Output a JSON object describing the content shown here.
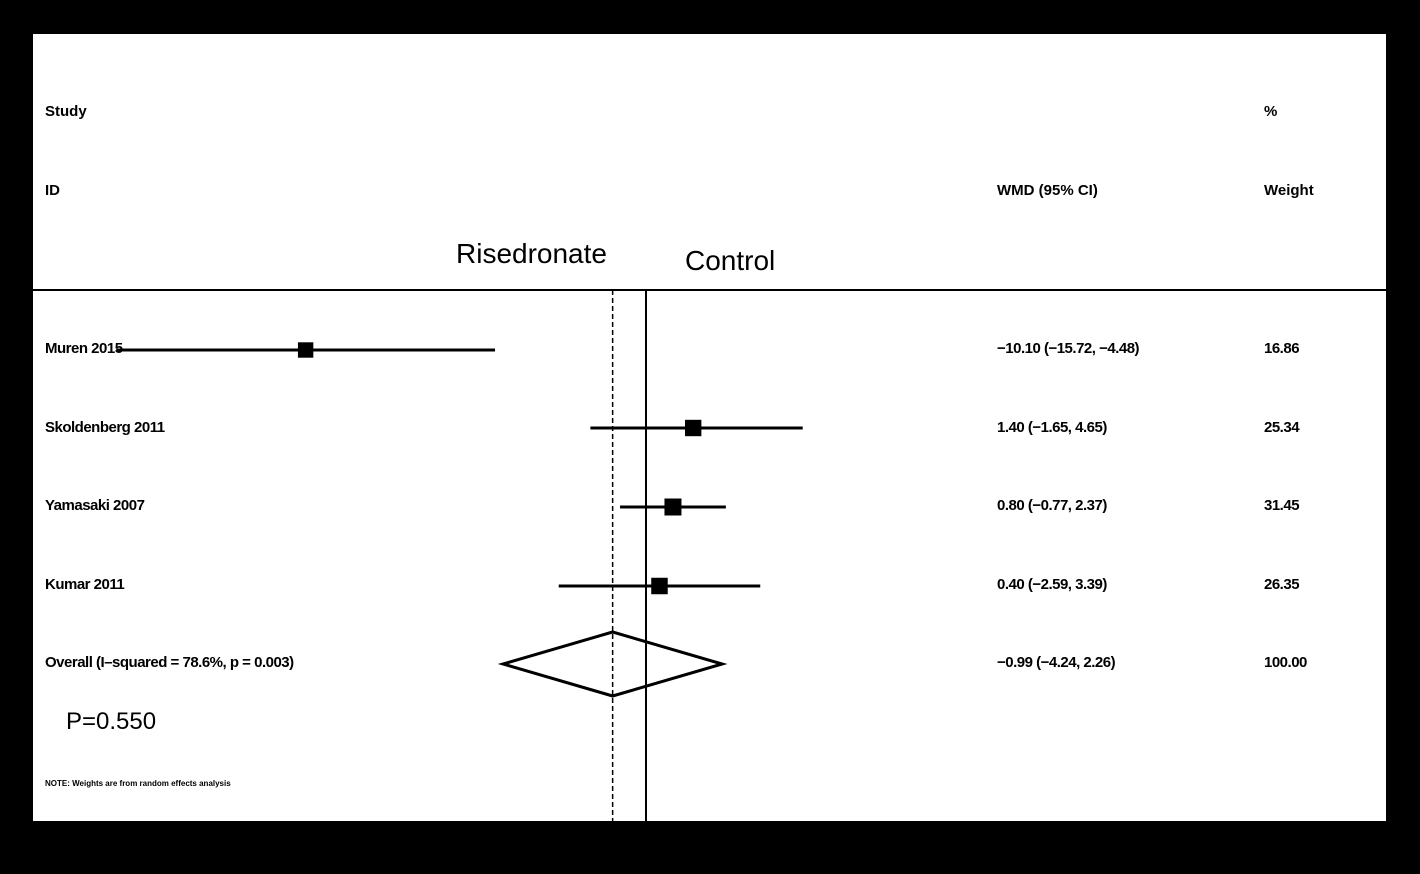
{
  "header": {
    "study_line1": "Study",
    "study_line2": "ID",
    "effect_header": "WMD (95% CI)",
    "weight_line1": "%",
    "weight_line2": "Weight"
  },
  "groups": {
    "left": "Risedronate",
    "right": "Control"
  },
  "annotations": {
    "p_value": "P=0.550",
    "note": "NOTE: Weights are from random effects analysis"
  },
  "chart_data": {
    "type": "forest",
    "xlim": [
      -20.4,
      20.4
    ],
    "ticks": [
      -10,
      0,
      10
    ],
    "tick_labels": [
      "-10",
      "0",
      "10"
    ],
    "null_line": 0,
    "studies": [
      {
        "name": "Muren 2015",
        "estimate": -10.1,
        "lower": -15.72,
        "upper": -4.48,
        "ci_text": "−10.10 (−15.72, −4.48)",
        "weight": 16.86,
        "weight_text": "16.86"
      },
      {
        "name": "Skoldenberg 2011",
        "estimate": 1.4,
        "lower": -1.65,
        "upper": 4.65,
        "ci_text": "1.40 (−1.65, 4.65)",
        "weight": 25.34,
        "weight_text": "25.34"
      },
      {
        "name": "Yamasaki 2007",
        "estimate": 0.8,
        "lower": -0.77,
        "upper": 2.37,
        "ci_text": "0.80 (−0.77, 2.37)",
        "weight": 31.45,
        "weight_text": "31.45"
      },
      {
        "name": "Kumar 2011",
        "estimate": 0.4,
        "lower": -2.59,
        "upper": 3.39,
        "ci_text": "0.40 (−2.59, 3.39)",
        "weight": 26.35,
        "weight_text": "26.35"
      }
    ],
    "overall": {
      "name": "Overall  (I–squared = 78.6%, p = 0.003)",
      "estimate": -0.99,
      "lower": -4.24,
      "upper": 2.26,
      "ci_text": "−0.99 (−4.24, 2.26)",
      "weight": 100.0,
      "weight_text": "100.00"
    }
  }
}
